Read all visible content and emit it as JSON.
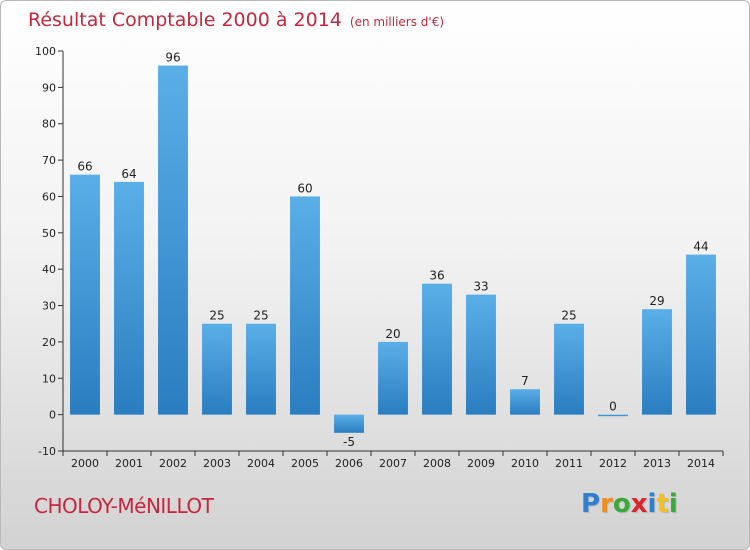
{
  "header": {
    "title": "Résultat Comptable 2000 à 2014",
    "subtitle": "(en milliers d'€)"
  },
  "footer": {
    "municipality": "CHOLOY-MéNILLOT",
    "logo": [
      "P",
      "r",
      "o",
      "x",
      "i",
      "t",
      "i"
    ],
    "logo_colors": [
      "#2e7fd0",
      "#f28c1c",
      "#3aa83a",
      "#d8262c",
      "#2e7fd0",
      "#f2c21c",
      "#3aa83a"
    ]
  },
  "chart_data": {
    "type": "bar",
    "title": "Résultat Comptable 2000 à 2014",
    "subtitle": "(en milliers d'€)",
    "xlabel": "",
    "ylabel": "",
    "categories": [
      "2000",
      "2001",
      "2002",
      "2003",
      "2004",
      "2005",
      "2006",
      "2007",
      "2008",
      "2009",
      "2010",
      "2011",
      "2012",
      "2013",
      "2014"
    ],
    "values": [
      66,
      64,
      96,
      25,
      25,
      60,
      -5,
      20,
      36,
      33,
      7,
      25,
      0,
      29,
      44
    ],
    "ylim": [
      -10,
      100
    ],
    "yticks": [
      -10,
      0,
      10,
      20,
      30,
      40,
      50,
      60,
      70,
      80,
      90,
      100
    ],
    "grid": false,
    "bar_color_top": "#5aafe8",
    "bar_color_bottom": "#2a7dc0"
  }
}
